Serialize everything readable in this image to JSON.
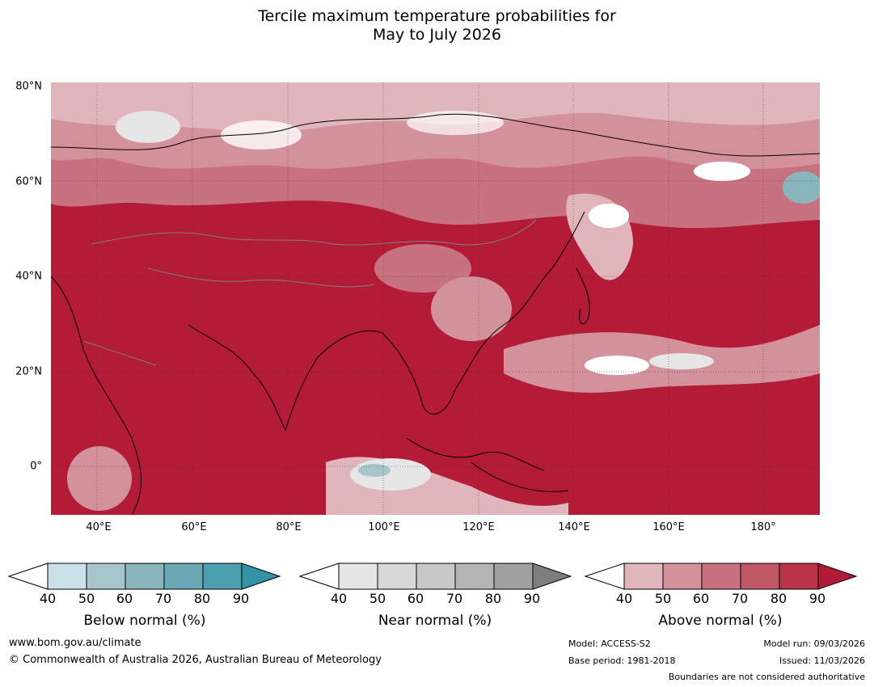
{
  "title": {
    "line1": "Tercile maximum temperature probabilities for",
    "line2": "May to July 2026"
  },
  "map": {
    "lat_labels": [
      "80°N",
      "60°N",
      "40°N",
      "20°N",
      "0°"
    ],
    "lon_labels": [
      "40°E",
      "60°E",
      "80°E",
      "100°E",
      "120°E",
      "140°E",
      "160°E",
      "180°"
    ],
    "dominant_category": "Above normal",
    "ocean_color": "#b31b37",
    "land_color": "#c9475c"
  },
  "colorbars": {
    "below": {
      "label": "Below normal (%)",
      "ticks": [
        "40",
        "50",
        "60",
        "70",
        "80",
        "90"
      ],
      "colors": [
        "#ffffff",
        "#c9e1e7",
        "#a7c6cc",
        "#89b5bd",
        "#6ca9b5",
        "#4aa0ae",
        "#3492a6"
      ]
    },
    "near": {
      "label": "Near normal (%)",
      "ticks": [
        "40",
        "50",
        "60",
        "70",
        "80",
        "90"
      ],
      "colors": [
        "#ffffff",
        "#e6e6e6",
        "#d7d7d7",
        "#c8c8c8",
        "#b4b4b4",
        "#a0a0a0",
        "#7f7f7f"
      ]
    },
    "above": {
      "label": "Above normal (%)",
      "ticks": [
        "40",
        "50",
        "60",
        "70",
        "80",
        "90"
      ],
      "colors": [
        "#ffffff",
        "#e0b6bc",
        "#d3929b",
        "#c9727f",
        "#c05868",
        "#b83347",
        "#b21b38"
      ]
    }
  },
  "footer": {
    "website": "www.bom.gov.au/climate",
    "copyright": "© Commonwealth of Australia 2026, Australian Bureau of Meteorology",
    "model": "Model: ACCESS-S2",
    "base_period": "Base period: 1981-2018",
    "model_run": "Model run: 09/03/2026",
    "issued": "Issued: 11/03/2026",
    "disclaimer": "Boundaries are not considered authoritative"
  }
}
